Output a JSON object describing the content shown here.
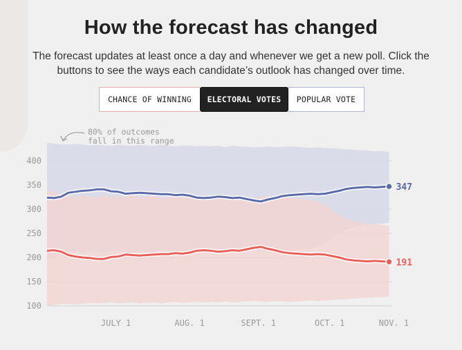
{
  "header": {
    "title": "How the forecast has changed",
    "subtitle": "The forecast updates at least once a day and whenever we get a new poll. Click the buttons to see the ways each candidate’s outlook has changed over time."
  },
  "tabs": [
    {
      "label": "CHANCE OF WINNING",
      "active": false
    },
    {
      "label": "ELECTORAL VOTES",
      "active": true
    },
    {
      "label": "POPULAR VOTE",
      "active": false
    }
  ],
  "annotation": {
    "line1": "80% of outcomes",
    "line2": "fall in this range"
  },
  "colors": {
    "blue_line": "#5b6aa8",
    "red_line": "#e8605a",
    "blue_band": "#d8dbe8",
    "red_band": "#f3d4d2",
    "grid": "#cfcfcf"
  },
  "chart_data": {
    "type": "line",
    "title": "How the forecast has changed",
    "ylabel": "",
    "xlabel": "",
    "ylim": [
      100,
      430
    ],
    "yticks": [
      100,
      150,
      200,
      250,
      300,
      350,
      400
    ],
    "xlim": [
      0,
      145
    ],
    "xticks": [
      {
        "label": "JULY 1",
        "day": 29
      },
      {
        "label": "AUG. 1",
        "day": 60
      },
      {
        "label": "SEPT. 1",
        "day": 89
      },
      {
        "label": "OCT. 1",
        "day": 119
      },
      {
        "label": "NOV. 1",
        "day": 146
      }
    ],
    "x": [
      0,
      3,
      6,
      9,
      12,
      15,
      18,
      21,
      24,
      27,
      30,
      33,
      36,
      39,
      42,
      45,
      48,
      51,
      54,
      57,
      60,
      63,
      66,
      69,
      72,
      75,
      78,
      81,
      84,
      87,
      90,
      93,
      96,
      99,
      102,
      105,
      108,
      111,
      114,
      117,
      120,
      123,
      126,
      129,
      132,
      135,
      138,
      141,
      144
    ],
    "series": [
      {
        "name": "",
        "color": "#5b6aa8",
        "final_label": "347",
        "values": [
          324,
          323,
          326,
          334,
          336,
          338,
          339,
          341,
          341,
          337,
          336,
          332,
          333,
          334,
          333,
          332,
          331,
          331,
          329,
          330,
          328,
          324,
          323,
          324,
          326,
          325,
          323,
          324,
          321,
          318,
          316,
          320,
          323,
          327,
          329,
          330,
          331,
          332,
          331,
          332,
          335,
          338,
          342,
          344,
          345,
          346,
          345,
          346,
          347
        ],
        "upper": [
          437,
          436,
          434,
          434,
          435,
          434,
          432,
          433,
          432,
          431,
          433,
          432,
          431,
          433,
          432,
          431,
          433,
          431,
          430,
          432,
          431,
          430,
          431,
          430,
          431,
          429,
          431,
          430,
          429,
          428,
          429,
          430,
          428,
          429,
          430,
          429,
          428,
          427,
          428,
          427,
          426,
          425,
          424,
          423,
          422,
          421,
          420,
          420,
          419
        ],
        "lower": [
          198,
          203,
          207,
          210,
          213,
          210,
          212,
          214,
          210,
          212,
          213,
          212,
          209,
          214,
          212,
          210,
          216,
          215,
          212,
          214,
          212,
          211,
          215,
          213,
          211,
          214,
          213,
          211,
          214,
          216,
          213,
          211,
          213,
          215,
          214,
          216,
          217,
          219,
          223,
          230,
          240,
          250,
          258,
          263,
          266,
          268,
          269,
          270,
          272
        ]
      },
      {
        "name": "",
        "color": "#e8605a",
        "final_label": "191",
        "values": [
          214,
          215,
          212,
          205,
          202,
          200,
          199,
          197,
          197,
          201,
          202,
          206,
          205,
          204,
          205,
          206,
          207,
          207,
          209,
          208,
          210,
          214,
          215,
          214,
          212,
          213,
          215,
          214,
          217,
          220,
          222,
          218,
          215,
          211,
          209,
          208,
          207,
          206,
          207,
          206,
          203,
          200,
          196,
          194,
          193,
          192,
          193,
          192,
          191
        ],
        "upper": [
          340,
          335,
          331,
          328,
          325,
          328,
          326,
          324,
          328,
          326,
          325,
          326,
          329,
          324,
          326,
          328,
          322,
          323,
          326,
          324,
          326,
          327,
          323,
          325,
          327,
          324,
          325,
          327,
          324,
          322,
          325,
          327,
          325,
          323,
          324,
          322,
          321,
          319,
          315,
          308,
          298,
          288,
          280,
          275,
          272,
          270,
          269,
          268,
          266
        ],
        "lower": [
          101,
          102,
          104,
          104,
          103,
          104,
          106,
          105,
          106,
          107,
          105,
          106,
          107,
          105,
          106,
          107,
          105,
          107,
          108,
          106,
          107,
          108,
          107,
          108,
          107,
          109,
          107,
          108,
          109,
          110,
          109,
          108,
          110,
          109,
          108,
          109,
          110,
          111,
          110,
          111,
          112,
          113,
          114,
          115,
          116,
          117,
          118,
          118,
          119
        ]
      }
    ]
  }
}
